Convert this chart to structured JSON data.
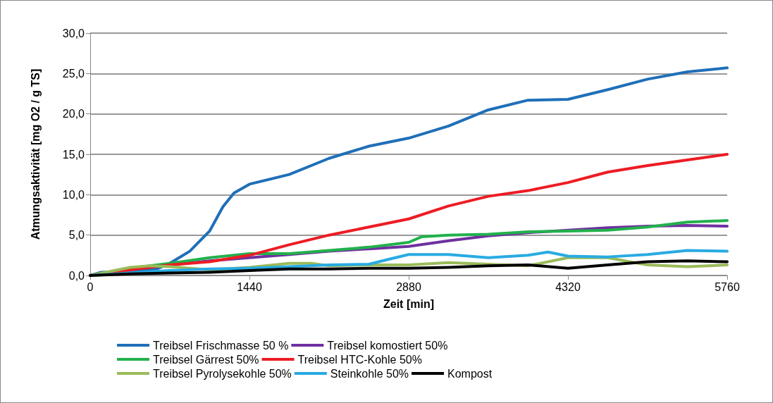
{
  "chart_data": {
    "type": "line",
    "xlabel": "Zeit [min]",
    "ylabel": "Atmungsaktivität [mg O2 / g TS]",
    "xlim": [
      0,
      5760
    ],
    "xticks": [
      0,
      1440,
      2880,
      4320,
      5760
    ],
    "ylim": [
      0,
      30
    ],
    "yticks": [
      {
        "value": 0,
        "label": "0,0"
      },
      {
        "value": 5,
        "label": "5,0"
      },
      {
        "value": 10,
        "label": "10,0"
      },
      {
        "value": 15,
        "label": "15,0"
      },
      {
        "value": 20,
        "label": "20,0"
      },
      {
        "value": 25,
        "label": "25,0"
      },
      {
        "value": 30,
        "label": "30,0"
      }
    ],
    "grid": "y",
    "legend": "bottom",
    "marker": "none",
    "line_style": "solid",
    "series": [
      {
        "name": "Treibsel Frischmasse 50 %",
        "color": "#1f6fb8",
        "x": [
          0,
          100,
          360,
          600,
          720,
          900,
          1080,
          1200,
          1300,
          1440,
          1800,
          2160,
          2520,
          2880,
          3240,
          3600,
          3960,
          4320,
          4680,
          5040,
          5400,
          5760
        ],
        "values": [
          0,
          0.4,
          0.5,
          0.8,
          1.5,
          3,
          5.5,
          8.5,
          10.2,
          11.3,
          12.5,
          14.5,
          16,
          17,
          18.5,
          20.5,
          21.7,
          21.8,
          23,
          24.3,
          25.2,
          25.7
        ]
      },
      {
        "name": "Treibsel komostiert 50%",
        "color": "#7030a0",
        "x": [
          0,
          360,
          720,
          1080,
          1440,
          1800,
          2160,
          2520,
          2880,
          3240,
          3600,
          3960,
          4320,
          4680,
          5040,
          5400,
          5760
        ],
        "values": [
          0,
          0.8,
          1.3,
          1.8,
          2.2,
          2.6,
          3.0,
          3.3,
          3.6,
          4.3,
          4.9,
          5.3,
          5.6,
          5.9,
          6.1,
          6.2,
          6.1
        ]
      },
      {
        "name": "Treibsel Gärrest 50%",
        "color": "#22b14c",
        "x": [
          0,
          360,
          720,
          1080,
          1440,
          1800,
          2160,
          2520,
          2880,
          3000,
          3240,
          3600,
          3960,
          4320,
          4680,
          5040,
          5400,
          5760
        ],
        "values": [
          0,
          0.9,
          1.5,
          2.2,
          2.7,
          2.7,
          3.1,
          3.5,
          4.1,
          4.8,
          5.0,
          5.1,
          5.4,
          5.5,
          5.6,
          6.0,
          6.6,
          6.8
        ]
      },
      {
        "name": "Treibsel HTC-Kohle 50%",
        "color": "#ed1c24",
        "x": [
          0,
          360,
          720,
          1080,
          1440,
          1800,
          2160,
          2520,
          2880,
          3240,
          3600,
          3960,
          4320,
          4680,
          5040,
          5400,
          5760
        ],
        "values": [
          0,
          0.7,
          1.3,
          1.7,
          2.5,
          3.8,
          5.0,
          6.0,
          7.0,
          8.6,
          9.8,
          10.5,
          11.5,
          12.8,
          13.6,
          14.3,
          15.0
        ]
      },
      {
        "name": "Treibsel Pyrolysekohle 50%",
        "color": "#9bbb59",
        "x": [
          0,
          360,
          540,
          720,
          1080,
          1440,
          1800,
          2000,
          2160,
          2520,
          2880,
          3240,
          3600,
          3960,
          4320,
          4680,
          5040,
          5400,
          5760
        ],
        "values": [
          0,
          1.0,
          1.2,
          1.1,
          0.7,
          1.0,
          1.5,
          1.5,
          1.2,
          1.3,
          1.3,
          1.6,
          1.4,
          1.2,
          2.2,
          2.2,
          1.3,
          1.1,
          1.3
        ]
      },
      {
        "name": "Steinkohle 50%",
        "color": "#29abe2",
        "x": [
          0,
          360,
          720,
          1080,
          1440,
          1800,
          2160,
          2520,
          2700,
          2880,
          3240,
          3600,
          3960,
          4140,
          4320,
          4680,
          5040,
          5400,
          5760
        ],
        "values": [
          0,
          0.3,
          0.6,
          0.8,
          0.9,
          1.1,
          1.3,
          1.4,
          2.0,
          2.6,
          2.6,
          2.2,
          2.5,
          2.9,
          2.4,
          2.3,
          2.6,
          3.1,
          3.0
        ]
      },
      {
        "name": "Kompost",
        "color": "#000000",
        "x": [
          0,
          360,
          720,
          1080,
          1440,
          1800,
          2160,
          2520,
          2880,
          3240,
          3600,
          3960,
          4320,
          4680,
          5040,
          5400,
          5760
        ],
        "values": [
          0,
          0.2,
          0.3,
          0.4,
          0.6,
          0.8,
          0.8,
          0.9,
          0.9,
          1.0,
          1.2,
          1.3,
          0.9,
          1.3,
          1.7,
          1.8,
          1.7
        ]
      }
    ]
  }
}
